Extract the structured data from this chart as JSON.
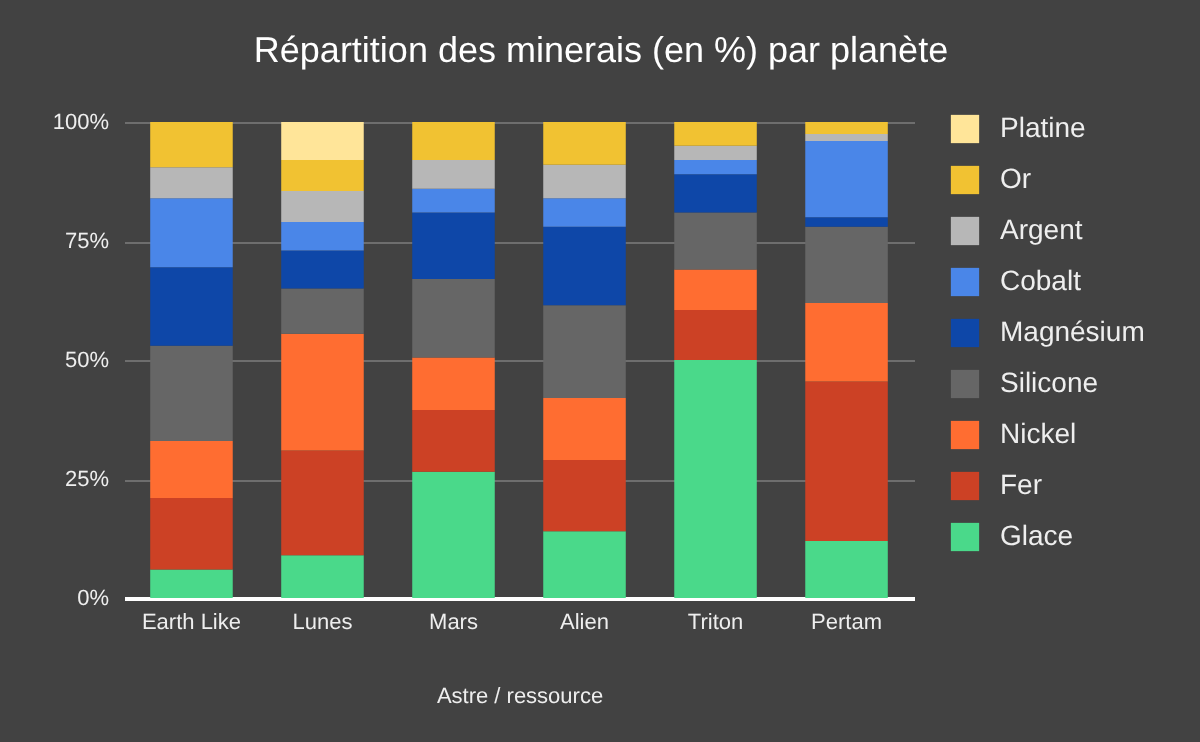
{
  "chart_data": {
    "type": "bar",
    "title": "Répartition des minerais (en %) par planète",
    "xlabel": "Astre / ressource",
    "categories": [
      "Earth Like",
      "Lunes",
      "Mars",
      "Alien",
      "Triton",
      "Pertam"
    ],
    "stacked": true,
    "ylim": [
      0,
      100
    ],
    "yticks": [
      {
        "value": 0,
        "label": "0%"
      },
      {
        "value": 25,
        "label": "25%"
      },
      {
        "value": 50,
        "label": "50%"
      },
      {
        "value": 75,
        "label": "75%"
      },
      {
        "value": 100,
        "label": "100%"
      }
    ],
    "grid": "y",
    "legend": "right",
    "series": [
      {
        "name": "Glace",
        "color": "#4ad98a",
        "values": [
          6,
          9,
          26.5,
          14,
          50,
          12
        ]
      },
      {
        "name": "Fer",
        "color": "#cc4125",
        "values": [
          15,
          22,
          13,
          15,
          10.5,
          33.5
        ]
      },
      {
        "name": "Nickel",
        "color": "#ff6d31",
        "values": [
          12,
          24.5,
          11,
          13,
          8.5,
          16.5
        ]
      },
      {
        "name": "Silicone",
        "color": "#666666",
        "values": [
          20,
          9.5,
          16.5,
          19.5,
          12,
          16
        ]
      },
      {
        "name": "Magnésium",
        "color": "#0e47a8",
        "values": [
          16.5,
          8,
          14,
          16.5,
          8,
          2
        ]
      },
      {
        "name": "Cobalt",
        "color": "#4a86e8",
        "values": [
          14.5,
          6,
          5,
          6,
          3,
          16
        ]
      },
      {
        "name": "Argent",
        "color": "#b7b7b7",
        "values": [
          6.5,
          6.5,
          6,
          7,
          3,
          1.5
        ]
      },
      {
        "name": "Or",
        "color": "#f1c232",
        "values": [
          9.5,
          6.5,
          8,
          9,
          5,
          2.5
        ]
      },
      {
        "name": "Platine",
        "color": "#ffe599",
        "values": [
          0,
          8,
          0,
          0,
          0,
          0
        ]
      }
    ]
  }
}
